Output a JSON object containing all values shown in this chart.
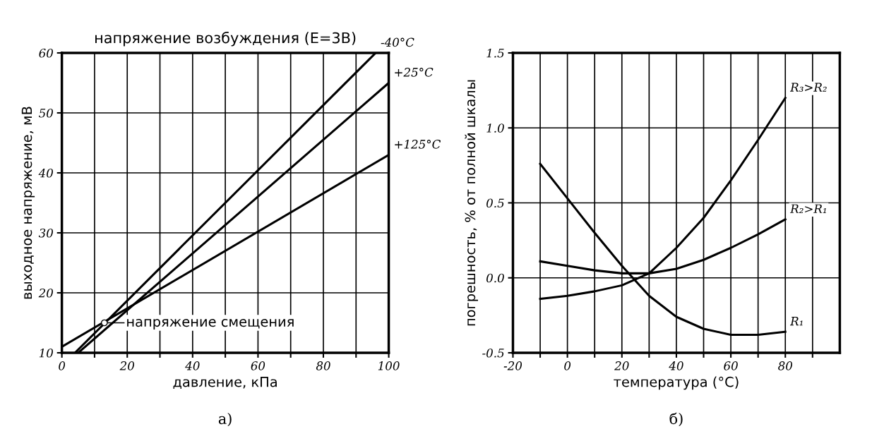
{
  "chart_data": [
    {
      "type": "line",
      "title": "напряжение возбуждения (E=3В)",
      "xlabel": "давление, кПа",
      "ylabel": "выходное напряжение, мВ",
      "xlim": [
        0,
        100
      ],
      "ylim": [
        10,
        60
      ],
      "xticks": [
        0,
        {
          "value": 10,
          "label": null
        },
        20,
        {
          "value": 30,
          "label": null
        },
        40,
        {
          "value": 50,
          "label": null
        },
        60,
        {
          "value": 70,
          "label": null
        },
        80,
        {
          "value": 90,
          "label": null
        },
        100
      ],
      "yticks": [
        10,
        20,
        30,
        40,
        50,
        60
      ],
      "grid": true,
      "legend": false,
      "marker": "none",
      "line_style": "solid",
      "series": [
        {
          "name": "-40°C",
          "color": "#000000",
          "x": [
            4,
            96
          ],
          "values": [
            10,
            60
          ]
        },
        {
          "name": "+25°C",
          "color": "#000000",
          "x": [
            5,
            100
          ],
          "values": [
            10,
            55
          ]
        },
        {
          "name": "+125°C",
          "color": "#000000",
          "x": [
            0,
            100
          ],
          "values": [
            11,
            43
          ]
        }
      ],
      "annotations": [
        {
          "text": "напряжение смещения",
          "x": 13,
          "y": 15
        },
        "а)"
      ]
    },
    {
      "type": "line",
      "xlabel": "температура (°C)",
      "ylabel": "погрешность, % от полной шкалы",
      "xlim": [
        -20,
        100
      ],
      "ylim": [
        -0.5,
        1.5
      ],
      "xticks": [
        -20,
        {
          "value": -10,
          "label": null
        },
        0,
        {
          "value": 10,
          "label": null
        },
        20,
        {
          "value": 30,
          "label": null
        },
        40,
        {
          "value": 50,
          "label": null
        },
        60,
        {
          "value": 70,
          "label": null
        },
        80,
        {
          "value": 90,
          "label": null
        }
      ],
      "yticks": [
        {
          "value": -0.5,
          "label": "-0.5"
        },
        {
          "value": 0,
          "label": "0.0"
        },
        {
          "value": 0.5,
          "label": "0.5"
        },
        {
          "value": 1.0,
          "label": "1.0"
        },
        {
          "value": 1.5,
          "label": "1.5"
        }
      ],
      "grid": true,
      "legend": false,
      "marker": "none",
      "line_style": "solid",
      "series": [
        {
          "name": "R₃>R₂",
          "color": "#000000",
          "x": [
            -10,
            0,
            10,
            20,
            30,
            40,
            50,
            60,
            70,
            80
          ],
          "values": [
            -0.14,
            -0.12,
            -0.09,
            -0.05,
            0.03,
            0.2,
            0.4,
            0.65,
            0.92,
            1.2
          ]
        },
        {
          "name": "R₂>R₁",
          "color": "#000000",
          "x": [
            -10,
            0,
            10,
            20,
            30,
            40,
            50,
            60,
            70,
            80
          ],
          "values": [
            0.11,
            0.08,
            0.05,
            0.03,
            0.03,
            0.06,
            0.12,
            0.2,
            0.29,
            0.39
          ]
        },
        {
          "name": "R₁",
          "color": "#000000",
          "x": [
            -10,
            0,
            10,
            20,
            30,
            40,
            50,
            60,
            70,
            80
          ],
          "values": [
            0.76,
            0.53,
            0.3,
            0.08,
            -0.12,
            -0.26,
            -0.34,
            -0.38,
            -0.38,
            -0.36
          ]
        }
      ],
      "annotations": [
        "б)"
      ]
    }
  ]
}
